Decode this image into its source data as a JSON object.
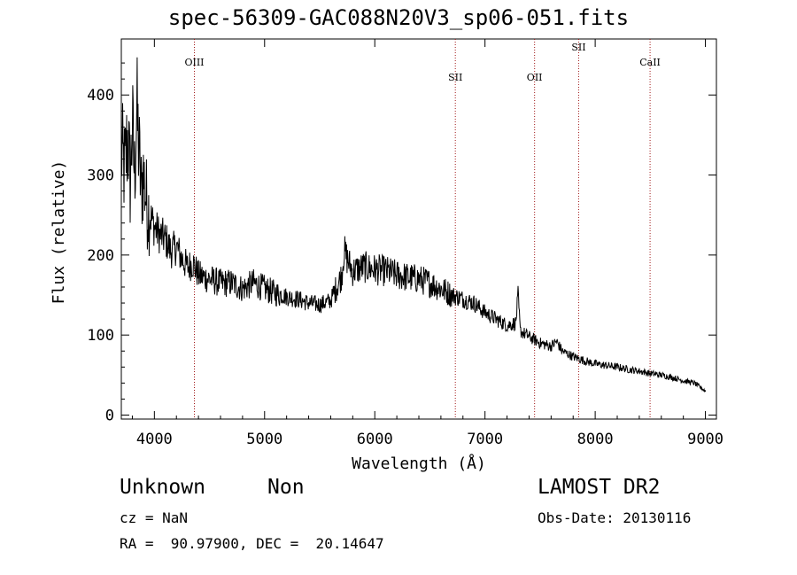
{
  "title": "spec-56309-GAC088N20V3_sp06-051.fits",
  "info": {
    "obj_class": "Unknown",
    "obj_subclass": "Non",
    "survey": "LAMOST DR2",
    "cz": "cz = NaN",
    "obs_date": "Obs-Date: 20130116",
    "coords": "RA =  90.97900, DEC =  20.14647"
  },
  "chart_data": {
    "type": "line",
    "title": "spec-56309-GAC088N20V3_sp06-051.fits",
    "xlabel": "Wavelength (Å)",
    "ylabel": "Flux (relative)",
    "xlim": [
      3700,
      9100
    ],
    "ylim": [
      -5,
      470
    ],
    "xticks": [
      4000,
      5000,
      6000,
      7000,
      8000,
      9000
    ],
    "yticks": [
      0,
      100,
      200,
      300,
      400
    ],
    "grid": false,
    "line_color": "#000000",
    "marker_color": "#a01818",
    "line_markers": [
      {
        "label": "OIII",
        "x": 4363
      },
      {
        "label": "SII",
        "x": 6731
      },
      {
        "label": "OII",
        "x": 7450
      },
      {
        "label": "SII",
        "x": 7850
      },
      {
        "label": "CaII",
        "x": 8498
      }
    ],
    "series": [
      {
        "x": [
          3700,
          3730,
          3760,
          3780,
          3800,
          3820,
          3840,
          3860,
          3880,
          3900,
          3930,
          3960,
          4000,
          4050,
          4100,
          4150,
          4200,
          4250,
          4300,
          4350,
          4400,
          4450,
          4500,
          4600,
          4700,
          4800,
          4900,
          5000,
          5100,
          5200,
          5300,
          5400,
          5500,
          5600,
          5700,
          5720,
          5750,
          5800,
          5900,
          6000,
          6100,
          6200,
          6300,
          6400,
          6500,
          6600,
          6700,
          6800,
          6900,
          7000,
          7100,
          7200,
          7280,
          7300,
          7320,
          7400,
          7500,
          7600,
          7650,
          7700,
          7800,
          7900,
          8000,
          8100,
          8200,
          8300,
          8400,
          8500,
          8600,
          8700,
          8800,
          8900,
          9000
        ],
        "y": [
          330,
          305,
          350,
          290,
          360,
          300,
          380,
          330,
          280,
          300,
          265,
          250,
          235,
          225,
          220,
          205,
          210,
          195,
          185,
          190,
          175,
          172,
          170,
          165,
          165,
          158,
          165,
          158,
          152,
          148,
          145,
          140,
          138,
          143,
          175,
          205,
          195,
          180,
          185,
          182,
          180,
          175,
          172,
          170,
          165,
          158,
          150,
          145,
          140,
          128,
          120,
          112,
          115,
          150,
          105,
          98,
          90,
          86,
          92,
          80,
          73,
          68,
          64,
          62,
          60,
          57,
          55,
          52,
          50,
          47,
          43,
          40,
          30
        ]
      }
    ]
  }
}
